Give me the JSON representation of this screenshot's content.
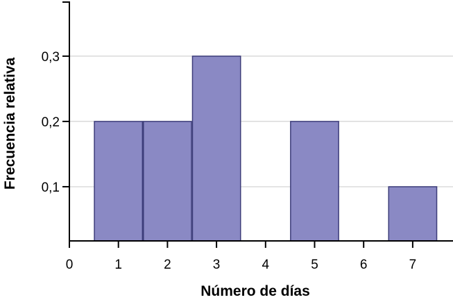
{
  "chart_data": {
    "type": "bar",
    "xlabel": "Número de días",
    "ylabel": "Frecuencia relativa",
    "x_ticks": [
      "0",
      "1",
      "2",
      "3",
      "4",
      "5",
      "6",
      "7"
    ],
    "y_ticks": [
      "0,1",
      "0,2",
      "0,3"
    ],
    "categories": [
      1,
      2,
      3,
      5,
      7
    ],
    "values": [
      0.2,
      0.2,
      0.3,
      0.2,
      0.1
    ],
    "xlim": [
      0,
      7.8
    ],
    "ylim": [
      0.017,
      0.386
    ],
    "grid": true,
    "bar_color": "#8a89c4",
    "bar_edge_color": "#3d3d7a"
  }
}
